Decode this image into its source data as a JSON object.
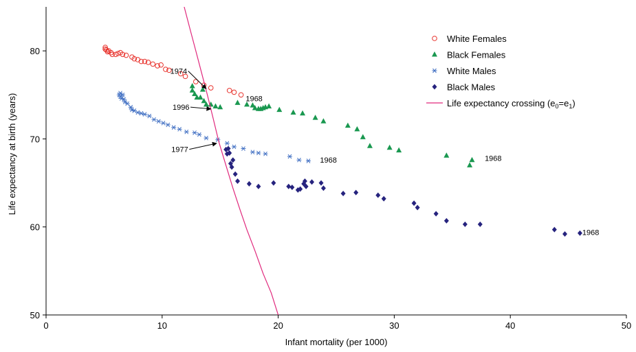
{
  "chart_data": {
    "type": "scatter",
    "xlabel": "Infant mortality (per 1000)",
    "ylabel": "Life expectancy at birth (years)",
    "xlim": [
      0,
      50
    ],
    "ylim": [
      50,
      85
    ],
    "xticks": [
      0,
      10,
      20,
      30,
      40,
      50
    ],
    "yticks": [
      50,
      60,
      70,
      80
    ],
    "grid": false,
    "legend_position": "top-right",
    "series": [
      {
        "name": "White Females",
        "marker": "circle-open",
        "color": "#e8322c",
        "points": [
          [
            5.1,
            80.4
          ],
          [
            5.1,
            80.2
          ],
          [
            5.2,
            80.1
          ],
          [
            5.3,
            79.9
          ],
          [
            5.4,
            80.0
          ],
          [
            5.6,
            79.8
          ],
          [
            5.7,
            79.6
          ],
          [
            6.0,
            79.6
          ],
          [
            6.2,
            79.7
          ],
          [
            6.4,
            79.8
          ],
          [
            6.6,
            79.6
          ],
          [
            6.9,
            79.5
          ],
          [
            7.4,
            79.3
          ],
          [
            7.6,
            79.1
          ],
          [
            7.9,
            79.0
          ],
          [
            8.2,
            78.8
          ],
          [
            8.5,
            78.8
          ],
          [
            8.8,
            78.7
          ],
          [
            9.2,
            78.5
          ],
          [
            9.6,
            78.3
          ],
          [
            9.9,
            78.4
          ],
          [
            10.3,
            77.9
          ],
          [
            10.6,
            77.8
          ],
          [
            11.6,
            77.4
          ],
          [
            12.0,
            77.1
          ],
          [
            12.9,
            76.5
          ],
          [
            13.6,
            76.1
          ],
          [
            14.2,
            75.8
          ],
          [
            15.8,
            75.5
          ],
          [
            16.2,
            75.3
          ],
          [
            16.8,
            75.0
          ]
        ]
      },
      {
        "name": "Black Females",
        "marker": "triangle-filled",
        "color": "#1a9850",
        "points": [
          [
            12.6,
            76.0
          ],
          [
            12.6,
            75.5
          ],
          [
            12.8,
            75.1
          ],
          [
            13.0,
            74.7
          ],
          [
            13.3,
            74.7
          ],
          [
            13.5,
            75.6
          ],
          [
            13.6,
            74.3
          ],
          [
            13.8,
            73.9
          ],
          [
            14.2,
            73.9
          ],
          [
            14.6,
            73.7
          ],
          [
            15.0,
            73.6
          ],
          [
            16.5,
            74.1
          ],
          [
            17.3,
            73.9
          ],
          [
            17.8,
            73.8
          ],
          [
            18.0,
            73.5
          ],
          [
            18.3,
            73.4
          ],
          [
            18.5,
            73.4
          ],
          [
            18.7,
            73.5
          ],
          [
            18.9,
            73.6
          ],
          [
            19.2,
            73.7
          ],
          [
            20.1,
            73.3
          ],
          [
            21.3,
            73.0
          ],
          [
            22.1,
            72.9
          ],
          [
            23.2,
            72.4
          ],
          [
            23.9,
            72.0
          ],
          [
            26.0,
            71.5
          ],
          [
            26.8,
            71.1
          ],
          [
            27.3,
            70.2
          ],
          [
            27.9,
            69.2
          ],
          [
            29.6,
            69.0
          ],
          [
            30.4,
            68.7
          ],
          [
            34.5,
            68.1
          ],
          [
            36.5,
            67.0
          ],
          [
            36.7,
            67.6
          ]
        ]
      },
      {
        "name": "White Males",
        "marker": "asterisk",
        "color": "#4472c4",
        "points": [
          [
            6.3,
            75.0
          ],
          [
            6.4,
            75.2
          ],
          [
            6.4,
            74.8
          ],
          [
            6.5,
            74.6
          ],
          [
            6.6,
            75.0
          ],
          [
            6.7,
            74.5
          ],
          [
            6.8,
            74.2
          ],
          [
            7.0,
            74.0
          ],
          [
            7.3,
            73.6
          ],
          [
            7.4,
            73.3
          ],
          [
            7.6,
            73.2
          ],
          [
            7.9,
            73.0
          ],
          [
            8.2,
            72.9
          ],
          [
            8.5,
            72.8
          ],
          [
            8.9,
            72.6
          ],
          [
            9.3,
            72.2
          ],
          [
            9.7,
            72.0
          ],
          [
            10.1,
            71.8
          ],
          [
            10.5,
            71.6
          ],
          [
            11.0,
            71.3
          ],
          [
            11.5,
            71.1
          ],
          [
            12.1,
            70.8
          ],
          [
            12.8,
            70.7
          ],
          [
            13.2,
            70.5
          ],
          [
            13.8,
            70.1
          ],
          [
            14.8,
            69.9
          ],
          [
            15.6,
            69.5
          ],
          [
            16.2,
            69.1
          ],
          [
            17.0,
            68.9
          ],
          [
            17.8,
            68.5
          ],
          [
            18.3,
            68.4
          ],
          [
            18.9,
            68.3
          ],
          [
            21.0,
            68.0
          ],
          [
            21.8,
            67.6
          ],
          [
            22.6,
            67.5
          ]
        ]
      },
      {
        "name": "Black Males",
        "marker": "diamond-filled",
        "color": "#26237e",
        "points": [
          [
            15.5,
            68.8
          ],
          [
            15.6,
            68.3
          ],
          [
            15.7,
            68.9
          ],
          [
            15.8,
            68.4
          ],
          [
            15.9,
            67.2
          ],
          [
            16.0,
            66.8
          ],
          [
            16.1,
            67.6
          ],
          [
            16.3,
            66.0
          ],
          [
            16.5,
            65.2
          ],
          [
            17.5,
            64.9
          ],
          [
            18.3,
            64.6
          ],
          [
            19.6,
            65.0
          ],
          [
            20.9,
            64.6
          ],
          [
            21.2,
            64.5
          ],
          [
            21.7,
            64.2
          ],
          [
            21.9,
            64.3
          ],
          [
            22.2,
            64.9
          ],
          [
            22.3,
            65.2
          ],
          [
            22.4,
            64.6
          ],
          [
            22.9,
            65.1
          ],
          [
            23.7,
            65.0
          ],
          [
            23.9,
            64.4
          ],
          [
            25.6,
            63.8
          ],
          [
            26.7,
            63.9
          ],
          [
            28.6,
            63.6
          ],
          [
            29.1,
            63.2
          ],
          [
            31.7,
            62.7
          ],
          [
            32.0,
            62.2
          ],
          [
            33.6,
            61.5
          ],
          [
            34.5,
            60.7
          ],
          [
            36.1,
            60.3
          ],
          [
            37.4,
            60.3
          ],
          [
            43.8,
            59.7
          ],
          [
            44.7,
            59.2
          ],
          [
            46.0,
            59.3
          ]
        ]
      },
      {
        "name": "Life expectancy crossing (e",
        "name_sub1": "0",
        "name_mid": "=e",
        "name_sub2": "1",
        "name_end": ")",
        "marker": "line",
        "color": "#e0287c",
        "points": [
          [
            11.9,
            85.0
          ],
          [
            12.4,
            82.5
          ],
          [
            12.9,
            80.0
          ],
          [
            13.4,
            77.5
          ],
          [
            13.9,
            75.0
          ],
          [
            14.4,
            72.3
          ],
          [
            14.9,
            69.6
          ],
          [
            15.5,
            67.0
          ],
          [
            16.1,
            64.4
          ],
          [
            16.7,
            62.0
          ],
          [
            17.3,
            59.7
          ],
          [
            18.0,
            57.3
          ],
          [
            18.7,
            54.7
          ],
          [
            19.4,
            52.5
          ],
          [
            20.0,
            50.0
          ]
        ]
      }
    ],
    "annotations": [
      {
        "text": "1974",
        "label_x": 10.7,
        "label_y": 77.4,
        "arrow_to": [
          13.8,
          75.7
        ]
      },
      {
        "text": "1996",
        "label_x": 10.9,
        "label_y": 73.3,
        "arrow_to": [
          14.2,
          73.4
        ]
      },
      {
        "text": "1977",
        "label_x": 10.8,
        "label_y": 68.5,
        "arrow_to": [
          14.7,
          69.5
        ]
      },
      {
        "text": "1968",
        "x": 17.2,
        "y": 74.6
      },
      {
        "text": "1968",
        "x": 23.6,
        "y": 67.6
      },
      {
        "text": "1968",
        "x": 37.8,
        "y": 67.8
      },
      {
        "text": "1968",
        "x": 46.2,
        "y": 59.4
      }
    ]
  }
}
